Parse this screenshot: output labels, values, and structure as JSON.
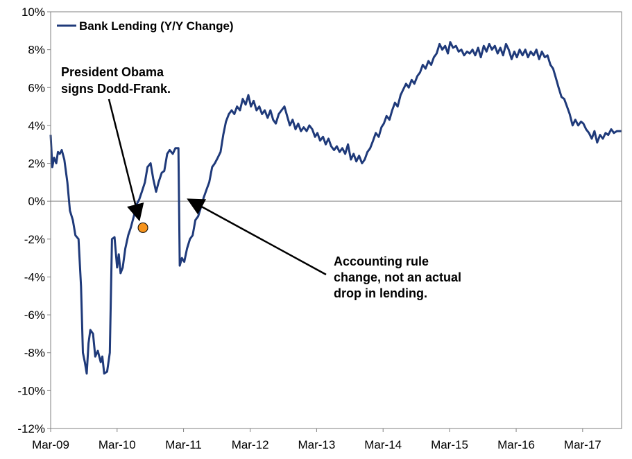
{
  "chart_data": {
    "type": "line",
    "title": "",
    "xlabel": "",
    "ylabel": "",
    "xlim": [
      "2009-03",
      "2017-10"
    ],
    "ylim": [
      -12,
      10
    ],
    "x_ticks": [
      "Mar-09",
      "Mar-10",
      "Mar-11",
      "Mar-12",
      "Mar-13",
      "Mar-14",
      "Mar-15",
      "Mar-16",
      "Mar-17"
    ],
    "y_ticks": [
      "10%",
      "8%",
      "6%",
      "4%",
      "2%",
      "0%",
      "-2%",
      "-4%",
      "-6%",
      "-8%",
      "-10%",
      "-12%"
    ],
    "grid": false,
    "zero_line": true,
    "legend_position": "top-left",
    "series": [
      {
        "name": "Bank Lending (Y/Y Change)",
        "color": "#1f3a7a",
        "points": [
          [
            "2009-03-01",
            3.5
          ],
          [
            "2009-03-10",
            1.8
          ],
          [
            "2009-03-20",
            2.3
          ],
          [
            "2009-04-01",
            2.0
          ],
          [
            "2009-04-10",
            2.6
          ],
          [
            "2009-04-20",
            2.5
          ],
          [
            "2009-05-01",
            2.7
          ],
          [
            "2009-05-15",
            2.2
          ],
          [
            "2009-06-01",
            1.0
          ],
          [
            "2009-06-15",
            -0.5
          ],
          [
            "2009-07-01",
            -1.0
          ],
          [
            "2009-07-15",
            -1.8
          ],
          [
            "2009-08-01",
            -2.0
          ],
          [
            "2009-08-15",
            -4.5
          ],
          [
            "2009-08-25",
            -8.0
          ],
          [
            "2009-09-05",
            -8.5
          ],
          [
            "2009-09-15",
            -9.1
          ],
          [
            "2009-09-25",
            -7.5
          ],
          [
            "2009-10-05",
            -6.8
          ],
          [
            "2009-10-20",
            -7.0
          ],
          [
            "2009-11-01",
            -8.2
          ],
          [
            "2009-11-15",
            -7.9
          ],
          [
            "2009-12-01",
            -8.5
          ],
          [
            "2009-12-10",
            -8.2
          ],
          [
            "2009-12-20",
            -9.1
          ],
          [
            "2010-01-05",
            -9.0
          ],
          [
            "2010-01-20",
            -8.0
          ],
          [
            "2010-02-01",
            -2.0
          ],
          [
            "2010-02-15",
            -1.9
          ],
          [
            "2010-03-01",
            -3.5
          ],
          [
            "2010-03-10",
            -2.8
          ],
          [
            "2010-03-20",
            -3.8
          ],
          [
            "2010-04-01",
            -3.5
          ],
          [
            "2010-04-15",
            -2.5
          ],
          [
            "2010-05-01",
            -1.8
          ],
          [
            "2010-05-15",
            -1.4
          ],
          [
            "2010-06-01",
            -0.8
          ],
          [
            "2010-06-15",
            -0.2
          ],
          [
            "2010-07-01",
            0.1
          ],
          [
            "2010-07-15",
            0.5
          ],
          [
            "2010-08-01",
            1.0
          ],
          [
            "2010-08-15",
            1.8
          ],
          [
            "2010-09-01",
            2.0
          ],
          [
            "2010-09-15",
            1.2
          ],
          [
            "2010-10-01",
            0.5
          ],
          [
            "2010-10-15",
            1.0
          ],
          [
            "2010-11-01",
            1.5
          ],
          [
            "2010-11-15",
            1.6
          ],
          [
            "2010-12-01",
            2.5
          ],
          [
            "2010-12-15",
            2.7
          ],
          [
            "2011-01-01",
            2.5
          ],
          [
            "2011-01-15",
            2.8
          ],
          [
            "2011-02-01",
            2.8
          ],
          [
            "2011-02-08",
            -3.4
          ],
          [
            "2011-02-20",
            -3.0
          ],
          [
            "2011-03-05",
            -3.2
          ],
          [
            "2011-03-20",
            -2.5
          ],
          [
            "2011-04-05",
            -2.0
          ],
          [
            "2011-04-20",
            -1.8
          ],
          [
            "2011-05-05",
            -1.0
          ],
          [
            "2011-05-20",
            -0.8
          ],
          [
            "2011-06-05",
            -0.3
          ],
          [
            "2011-06-20",
            0.2
          ],
          [
            "2011-07-05",
            0.6
          ],
          [
            "2011-07-20",
            1.0
          ],
          [
            "2011-08-05",
            1.8
          ],
          [
            "2011-08-20",
            2.0
          ],
          [
            "2011-09-05",
            2.3
          ],
          [
            "2011-09-20",
            2.6
          ],
          [
            "2011-10-05",
            3.5
          ],
          [
            "2011-10-20",
            4.2
          ],
          [
            "2011-11-05",
            4.6
          ],
          [
            "2011-11-20",
            4.8
          ],
          [
            "2011-12-05",
            4.6
          ],
          [
            "2011-12-20",
            5.0
          ],
          [
            "2012-01-05",
            4.8
          ],
          [
            "2012-01-20",
            5.4
          ],
          [
            "2012-02-05",
            5.1
          ],
          [
            "2012-02-20",
            5.6
          ],
          [
            "2012-03-05",
            5.0
          ],
          [
            "2012-03-20",
            5.3
          ],
          [
            "2012-04-05",
            4.8
          ],
          [
            "2012-04-20",
            5.0
          ],
          [
            "2012-05-05",
            4.6
          ],
          [
            "2012-05-20",
            4.8
          ],
          [
            "2012-06-05",
            4.4
          ],
          [
            "2012-06-20",
            4.8
          ],
          [
            "2012-07-05",
            4.3
          ],
          [
            "2012-07-20",
            4.1
          ],
          [
            "2012-08-05",
            4.6
          ],
          [
            "2012-08-20",
            4.8
          ],
          [
            "2012-09-05",
            5.0
          ],
          [
            "2012-09-20",
            4.5
          ],
          [
            "2012-10-05",
            4.0
          ],
          [
            "2012-10-20",
            4.3
          ],
          [
            "2012-11-05",
            3.8
          ],
          [
            "2012-11-20",
            4.1
          ],
          [
            "2012-12-05",
            3.7
          ],
          [
            "2012-12-20",
            3.9
          ],
          [
            "2013-01-05",
            3.7
          ],
          [
            "2013-01-20",
            4.0
          ],
          [
            "2013-02-05",
            3.8
          ],
          [
            "2013-02-20",
            3.4
          ],
          [
            "2013-03-05",
            3.6
          ],
          [
            "2013-03-20",
            3.2
          ],
          [
            "2013-04-05",
            3.4
          ],
          [
            "2013-04-20",
            3.0
          ],
          [
            "2013-05-05",
            3.3
          ],
          [
            "2013-05-20",
            2.9
          ],
          [
            "2013-06-05",
            2.7
          ],
          [
            "2013-06-20",
            2.9
          ],
          [
            "2013-07-05",
            2.6
          ],
          [
            "2013-07-20",
            2.8
          ],
          [
            "2013-08-05",
            2.5
          ],
          [
            "2013-08-20",
            3.0
          ],
          [
            "2013-09-05",
            2.2
          ],
          [
            "2013-09-20",
            2.5
          ],
          [
            "2013-10-05",
            2.1
          ],
          [
            "2013-10-20",
            2.4
          ],
          [
            "2013-11-05",
            2.0
          ],
          [
            "2013-11-20",
            2.2
          ],
          [
            "2013-12-05",
            2.6
          ],
          [
            "2013-12-20",
            2.8
          ],
          [
            "2014-01-05",
            3.2
          ],
          [
            "2014-01-20",
            3.6
          ],
          [
            "2014-02-05",
            3.4
          ],
          [
            "2014-02-20",
            3.9
          ],
          [
            "2014-03-05",
            4.1
          ],
          [
            "2014-03-20",
            4.5
          ],
          [
            "2014-04-05",
            4.3
          ],
          [
            "2014-04-20",
            4.8
          ],
          [
            "2014-05-05",
            5.2
          ],
          [
            "2014-05-20",
            5.0
          ],
          [
            "2014-06-05",
            5.6
          ],
          [
            "2014-06-20",
            5.9
          ],
          [
            "2014-07-05",
            6.2
          ],
          [
            "2014-07-20",
            6.0
          ],
          [
            "2014-08-05",
            6.4
          ],
          [
            "2014-08-20",
            6.2
          ],
          [
            "2014-09-05",
            6.6
          ],
          [
            "2014-09-20",
            6.8
          ],
          [
            "2014-10-05",
            7.2
          ],
          [
            "2014-10-20",
            7.0
          ],
          [
            "2014-11-05",
            7.4
          ],
          [
            "2014-11-20",
            7.2
          ],
          [
            "2014-12-05",
            7.6
          ],
          [
            "2014-12-20",
            7.8
          ],
          [
            "2015-01-05",
            8.3
          ],
          [
            "2015-01-20",
            8.0
          ],
          [
            "2015-02-05",
            8.2
          ],
          [
            "2015-02-20",
            7.8
          ],
          [
            "2015-03-05",
            8.4
          ],
          [
            "2015-03-20",
            8.1
          ],
          [
            "2015-04-05",
            8.2
          ],
          [
            "2015-04-20",
            7.9
          ],
          [
            "2015-05-05",
            8.0
          ],
          [
            "2015-05-20",
            7.7
          ],
          [
            "2015-06-05",
            7.9
          ],
          [
            "2015-06-20",
            7.8
          ],
          [
            "2015-07-05",
            8.0
          ],
          [
            "2015-07-20",
            7.7
          ],
          [
            "2015-08-05",
            8.1
          ],
          [
            "2015-08-20",
            7.6
          ],
          [
            "2015-09-05",
            8.2
          ],
          [
            "2015-09-20",
            7.9
          ],
          [
            "2015-10-05",
            8.3
          ],
          [
            "2015-10-20",
            8.0
          ],
          [
            "2015-11-05",
            8.2
          ],
          [
            "2015-11-20",
            7.8
          ],
          [
            "2015-12-05",
            8.1
          ],
          [
            "2015-12-20",
            7.7
          ],
          [
            "2016-01-05",
            8.3
          ],
          [
            "2016-01-20",
            8.0
          ],
          [
            "2016-02-05",
            7.5
          ],
          [
            "2016-02-20",
            7.9
          ],
          [
            "2016-03-05",
            7.6
          ],
          [
            "2016-03-20",
            8.0
          ],
          [
            "2016-04-05",
            7.7
          ],
          [
            "2016-04-20",
            8.0
          ],
          [
            "2016-05-05",
            7.6
          ],
          [
            "2016-05-20",
            7.9
          ],
          [
            "2016-06-05",
            7.7
          ],
          [
            "2016-06-20",
            8.0
          ],
          [
            "2016-07-05",
            7.5
          ],
          [
            "2016-07-20",
            7.9
          ],
          [
            "2016-08-05",
            7.6
          ],
          [
            "2016-08-20",
            7.7
          ],
          [
            "2016-09-05",
            7.2
          ],
          [
            "2016-09-20",
            7.0
          ],
          [
            "2016-10-05",
            6.5
          ],
          [
            "2016-10-20",
            6.0
          ],
          [
            "2016-11-05",
            5.5
          ],
          [
            "2016-11-20",
            5.4
          ],
          [
            "2016-12-05",
            5.0
          ],
          [
            "2016-12-20",
            4.6
          ],
          [
            "2017-01-05",
            4.0
          ],
          [
            "2017-01-20",
            4.3
          ],
          [
            "2017-02-05",
            4.0
          ],
          [
            "2017-02-20",
            4.2
          ],
          [
            "2017-03-05",
            4.1
          ],
          [
            "2017-03-20",
            3.8
          ],
          [
            "2017-04-05",
            3.6
          ],
          [
            "2017-04-20",
            3.3
          ],
          [
            "2017-05-05",
            3.7
          ],
          [
            "2017-05-20",
            3.1
          ],
          [
            "2017-06-05",
            3.5
          ],
          [
            "2017-06-20",
            3.3
          ],
          [
            "2017-07-05",
            3.6
          ],
          [
            "2017-07-20",
            3.5
          ],
          [
            "2017-08-05",
            3.8
          ],
          [
            "2017-08-20",
            3.6
          ],
          [
            "2017-09-05",
            3.7
          ],
          [
            "2017-10-01",
            3.7
          ]
        ]
      }
    ],
    "annotations": [
      {
        "id": "dodd-frank",
        "lines": [
          "President Obama",
          "signs Dodd-Frank."
        ],
        "point": [
          "2010-07-21",
          -1.4
        ],
        "marker_color": "#f7941d"
      },
      {
        "id": "accounting",
        "lines": [
          "Accounting rule",
          "change, not an actual",
          "drop in lending."
        ],
        "point": [
          "2011-02-10",
          0.2
        ]
      }
    ]
  }
}
